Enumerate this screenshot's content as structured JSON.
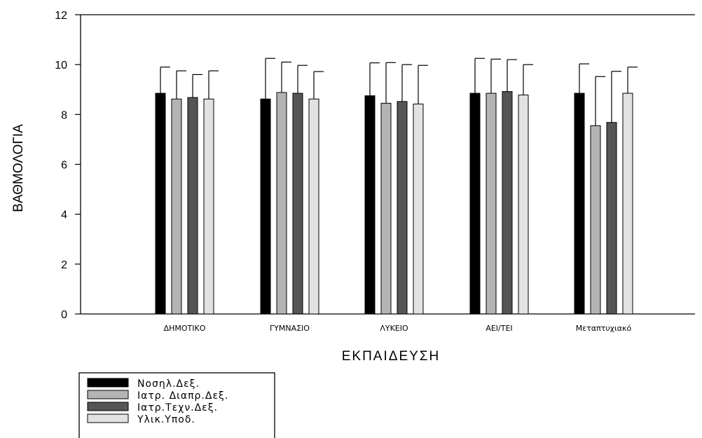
{
  "chart_data": {
    "type": "bar",
    "xlabel": "ΕΚΠΑΙΔΕΥΣΗ",
    "ylabel": "ΒΑΘΜΟΛΟΓΙΑ",
    "ylim": [
      0,
      12
    ],
    "yticks": [
      "0",
      "2",
      "4",
      "6",
      "8",
      "10",
      "12"
    ],
    "categories": [
      "ΔΗΜΟΤΙΚΟ",
      "ΓΥΜΝΑΣΙΟ",
      "ΛΥΚΕΙΟ",
      "ΑΕΙ/ΤΕΙ",
      "Μεταπτυχιακό"
    ],
    "series": [
      {
        "name": "Νοσηλ.Δεξ.",
        "color": "#000000",
        "values": [
          8.85,
          8.62,
          8.75,
          8.85,
          8.85
        ],
        "errors": [
          1.05,
          1.63,
          1.32,
          1.4,
          1.18
        ]
      },
      {
        "name": "Ιατρ. Διαπρ.Δεξ.",
        "color": "#b4b4b4",
        "values": [
          8.62,
          8.88,
          8.45,
          8.85,
          7.55
        ],
        "errors": [
          1.13,
          1.22,
          1.63,
          1.37,
          1.97
        ]
      },
      {
        "name": "Ιατρ.Τεχν.Δεξ.",
        "color": "#555555",
        "values": [
          8.68,
          8.85,
          8.52,
          8.92,
          7.68
        ],
        "errors": [
          0.92,
          1.12,
          1.48,
          1.28,
          2.05
        ]
      },
      {
        "name": "Υλικ.Υποδ.",
        "color": "#e2e2e2",
        "values": [
          8.62,
          8.62,
          8.42,
          8.78,
          8.85
        ],
        "errors": [
          1.13,
          1.1,
          1.55,
          1.22,
          1.05
        ]
      }
    ],
    "error_bars": true,
    "grid": false,
    "legend_position": "bottom-left"
  }
}
